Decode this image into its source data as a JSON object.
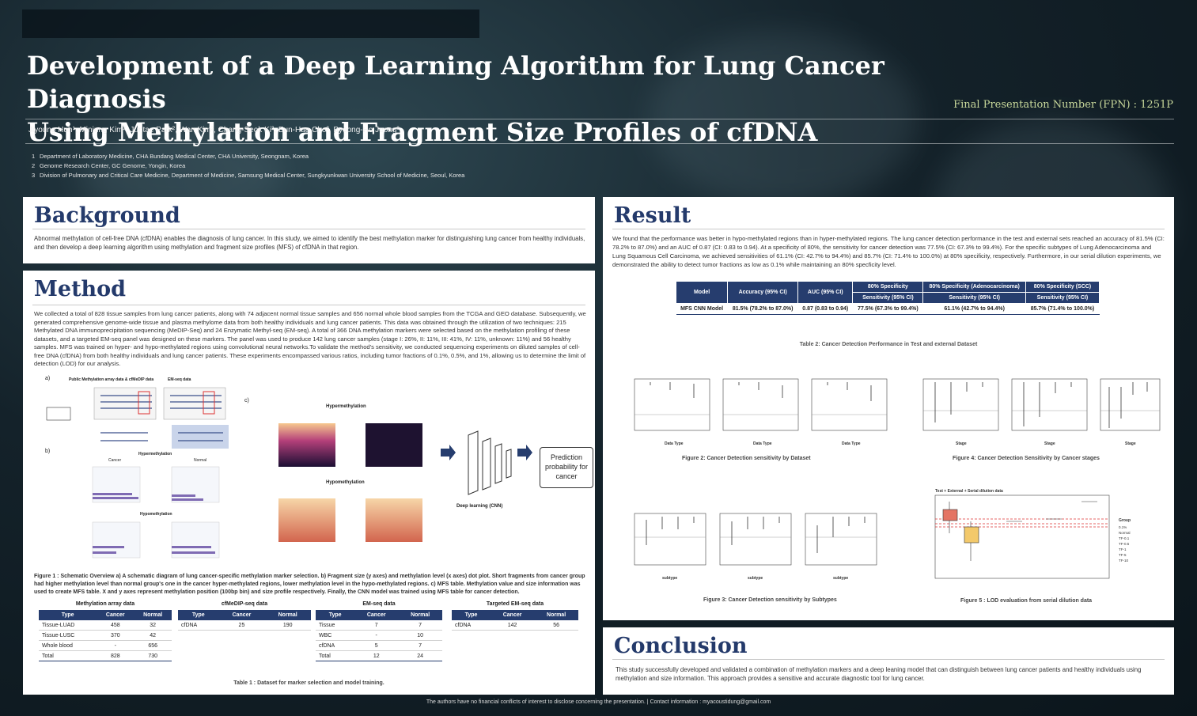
{
  "header": {
    "title_line1": "Development of a Deep Learning Algorithm for Lung Cancer Diagnosis",
    "title_line2": "Using Methylation and Fragment Size Profiles of cfDNA",
    "fpn": "Final Presentation Number (FPN) : 1251P",
    "authors": "Jiyoung Huh¹, Minjung Kim², Juntae Park², Wan Kim², Chang-Seok Ki², Eun-Hae Cho², Byeong-Ho Jeong³",
    "affiliations": [
      {
        "num": "1",
        "text": "Department of Laboratory Medicine, CHA Bundang Medical Center, CHA University, Seongnam, Korea"
      },
      {
        "num": "2",
        "text": "Genome Research Center, GC Genome, Yongin, Korea"
      },
      {
        "num": "3",
        "text": "Division of Pulmonary and Critical Care Medicine, Department of Medicine, Samsung Medical Center, Sungkyunkwan University School of Medicine, Seoul, Korea"
      }
    ]
  },
  "background": {
    "heading": "Background",
    "text": "Abnormal methylation of cell-free DNA (cfDNA) enables the diagnosis of lung cancer. In this study, we aimed to identify the best methylation marker for distinguishing lung cancer from healthy individuals, and then develop a deep learning algorithm using methylation and fragment size profiles (MFS) of cfDNA in that region."
  },
  "method": {
    "heading": "Method",
    "text": "We collected a total of 828 tissue samples from lung cancer patients, along with 74 adjacent normal tissue samples and 656 normal whole blood samples from the TCGA and GEO database. Subsequently, we generated comprehensive genome-wide tissue and plasma methylome data from both healthy individuals and lung cancer patients. This data was obtained through the utilization of two techniques: 215 Methylated DNA immunoprecipitation sequencing (MeDIP-Seq) and 24 Enzymatic Methyl-seq (EM-seq). A total of 366 DNA methylation markers were selected based on the methylation profiling of these datasets, and a targeted EM-seq panel was designed on these markers. The panel was used to produce 142 lung cancer samples (stage I: 26%, II: 11%, III: 41%, IV: 11%, unknown: 11%) and 56 healthy samples. MFS was trained on hyper- and hypo-methylated regions using convolutional neural networks.To validate the method's sensitivity, we conducted sequencing experiments on diluted samples of cell-free DNA (cfDNA) from both healthy individuals and lung cancer patients. These experiments encompassed various ratios, including tumor fractions of 0.1%, 0.5%, and 1%, allowing us to determine the limit of detection (LOD) for our analysis.",
    "figure_labels": {
      "a": "a)",
      "b": "b)",
      "c": "c)",
      "public_data": "Public Methylation array data & cfMeDIP data",
      "em_seq": "EM-seq data",
      "hyper": "Hypermethylation",
      "hypo": "Hypomethylation",
      "cancer": "Cancer",
      "normal": "Normal",
      "deep_learning": "Deep learning (CNN)",
      "prediction": "Prediction probability for cancer"
    },
    "figure1_caption": "Figure 1 : Schematic Overview a) A schematic diagram of lung cancer-specific methylation marker selection. b) Fragment size (y axes) and methylation level (x axes) dot plot. Short fragments from cancer group had higher methylation level than normal group's one in the cancer hyper-methylated regions, lower methylation level in the hypo-methylated regions. c) MFS table. Methylation value and size information was used to create MFS table. X and y axes represent methylation position (100bp bin) and size profile respectively. Finally, the CNN model was trained using MFS table for cancer detection.",
    "tables": [
      {
        "caption": "Methylation array data",
        "headers": [
          "Type",
          "Cancer",
          "Normal"
        ],
        "rows": [
          [
            "Tissue-LUAD",
            "458",
            "32"
          ],
          [
            "Tissue-LUSC",
            "370",
            "42"
          ],
          [
            "Whole blood",
            "-",
            "656"
          ]
        ],
        "total": [
          "Total",
          "828",
          "730"
        ]
      },
      {
        "caption": "cfMeDIP-seq data",
        "headers": [
          "Type",
          "Cancer",
          "Normal"
        ],
        "rows": [
          [
            "cfDNA",
            "25",
            "190"
          ]
        ],
        "total": null
      },
      {
        "caption": "EM-seq data",
        "headers": [
          "Type",
          "Cancer",
          "Normal"
        ],
        "rows": [
          [
            "Tissue",
            "7",
            "7"
          ],
          [
            "WBC",
            "-",
            "10"
          ],
          [
            "cfDNA",
            "5",
            "7"
          ]
        ],
        "total": [
          "Total",
          "12",
          "24"
        ]
      },
      {
        "caption": "Targeted EM-seq data",
        "headers": [
          "Type",
          "Cancer",
          "Normal"
        ],
        "rows": [
          [
            "cfDNA",
            "142",
            "56"
          ]
        ],
        "total": null
      }
    ],
    "table1_caption": "Table 1 : Dataset for marker selection and model training."
  },
  "result": {
    "heading": "Result",
    "text": "We found that the performance was better in hypo-methylated regions than in hyper-methylated regions. The lung cancer detection performance in the test and external sets reached an accuracy of 81.5% (CI: 78.2% to 87.0%) and an AUC of 0.87 (CI: 0.83 to 0.94). At a specificity of 80%, the sensitivity for cancer detection was 77.5% (CI: 67.3% to 99.4%). For the specific subtypes of Lung Adenocarcinoma and Lung Squamous Cell Carcinoma, we achieved sensitivities of 61.1% (CI: 42.7% to 94.4%) and 85.7% (CI: 71.4% to 100.0%) at 80% specificity, respectively. Furthermore, in our serial dilution experiments, we demonstrated the ability to detect tumor fractions as low as 0.1% while maintaining an 80% specficity level.",
    "table": {
      "headers": [
        "Model",
        "Accuracy (95% CI)",
        "AUC (95% CI)",
        "80% Specificity",
        "80% Specificity (Adenocarcinoma)",
        "80% Specificity (SCC)"
      ],
      "subheaders": [
        "Sensitivity (95% CI)",
        "Sensitivity (95% CI)",
        "Sensitivity (95% CI)"
      ],
      "row": [
        "MFS CNN Model",
        "81.5% (78.2% to 87.0%)",
        "0.87 (0.83 to 0.94)",
        "77.5% (67.3% to 99.4%)",
        "61.1% (42.7% to 94.4%)",
        "85.7% (71.4% to 100.0%)"
      ]
    },
    "table2_caption": "Table 2: Cancer Detection Performance in Test and external Dataset",
    "fig2_caption": "Figure 2: Cancer Detection sensitivity by Dataset",
    "fig3_caption": "Figure 3: Cancer Detection sensitivity by Subtypes",
    "fig4_caption": "Figure 4: Cancer Detection Sensitivity by Cancer stages",
    "fig5_caption": "Figure 5 : LOD evaluation from serial dilution data",
    "axis_labels": {
      "data_type": "Data Type",
      "stage": "Stage",
      "subtype": "subtype",
      "group": "Group"
    },
    "fig5_title": "Test + External + Serial dilution data",
    "fig5_legend": [
      "0.1%",
      "Normal",
      "TF-0.1",
      "TF-0.5",
      "TF-1",
      "TF-5",
      "TF-10"
    ]
  },
  "conclusion": {
    "heading": "Conclusion",
    "text": "This study successfully developed and validated a combination of methylation markers and a deep leaning model that can distinguish between lung cancer patients and healthy individuals using methylation and size information. This approach provides a sensitive and accurate diagnostic tool for lung cancer."
  },
  "footer": "The authors have no financial conflicts of interest to disclose concerning the presentation.    |    Contact information : myacoustidung@gmail.com",
  "colors": {
    "navy": "#263d6e",
    "accent_green": "#c8d89b",
    "panel_white": "#ffffff"
  }
}
